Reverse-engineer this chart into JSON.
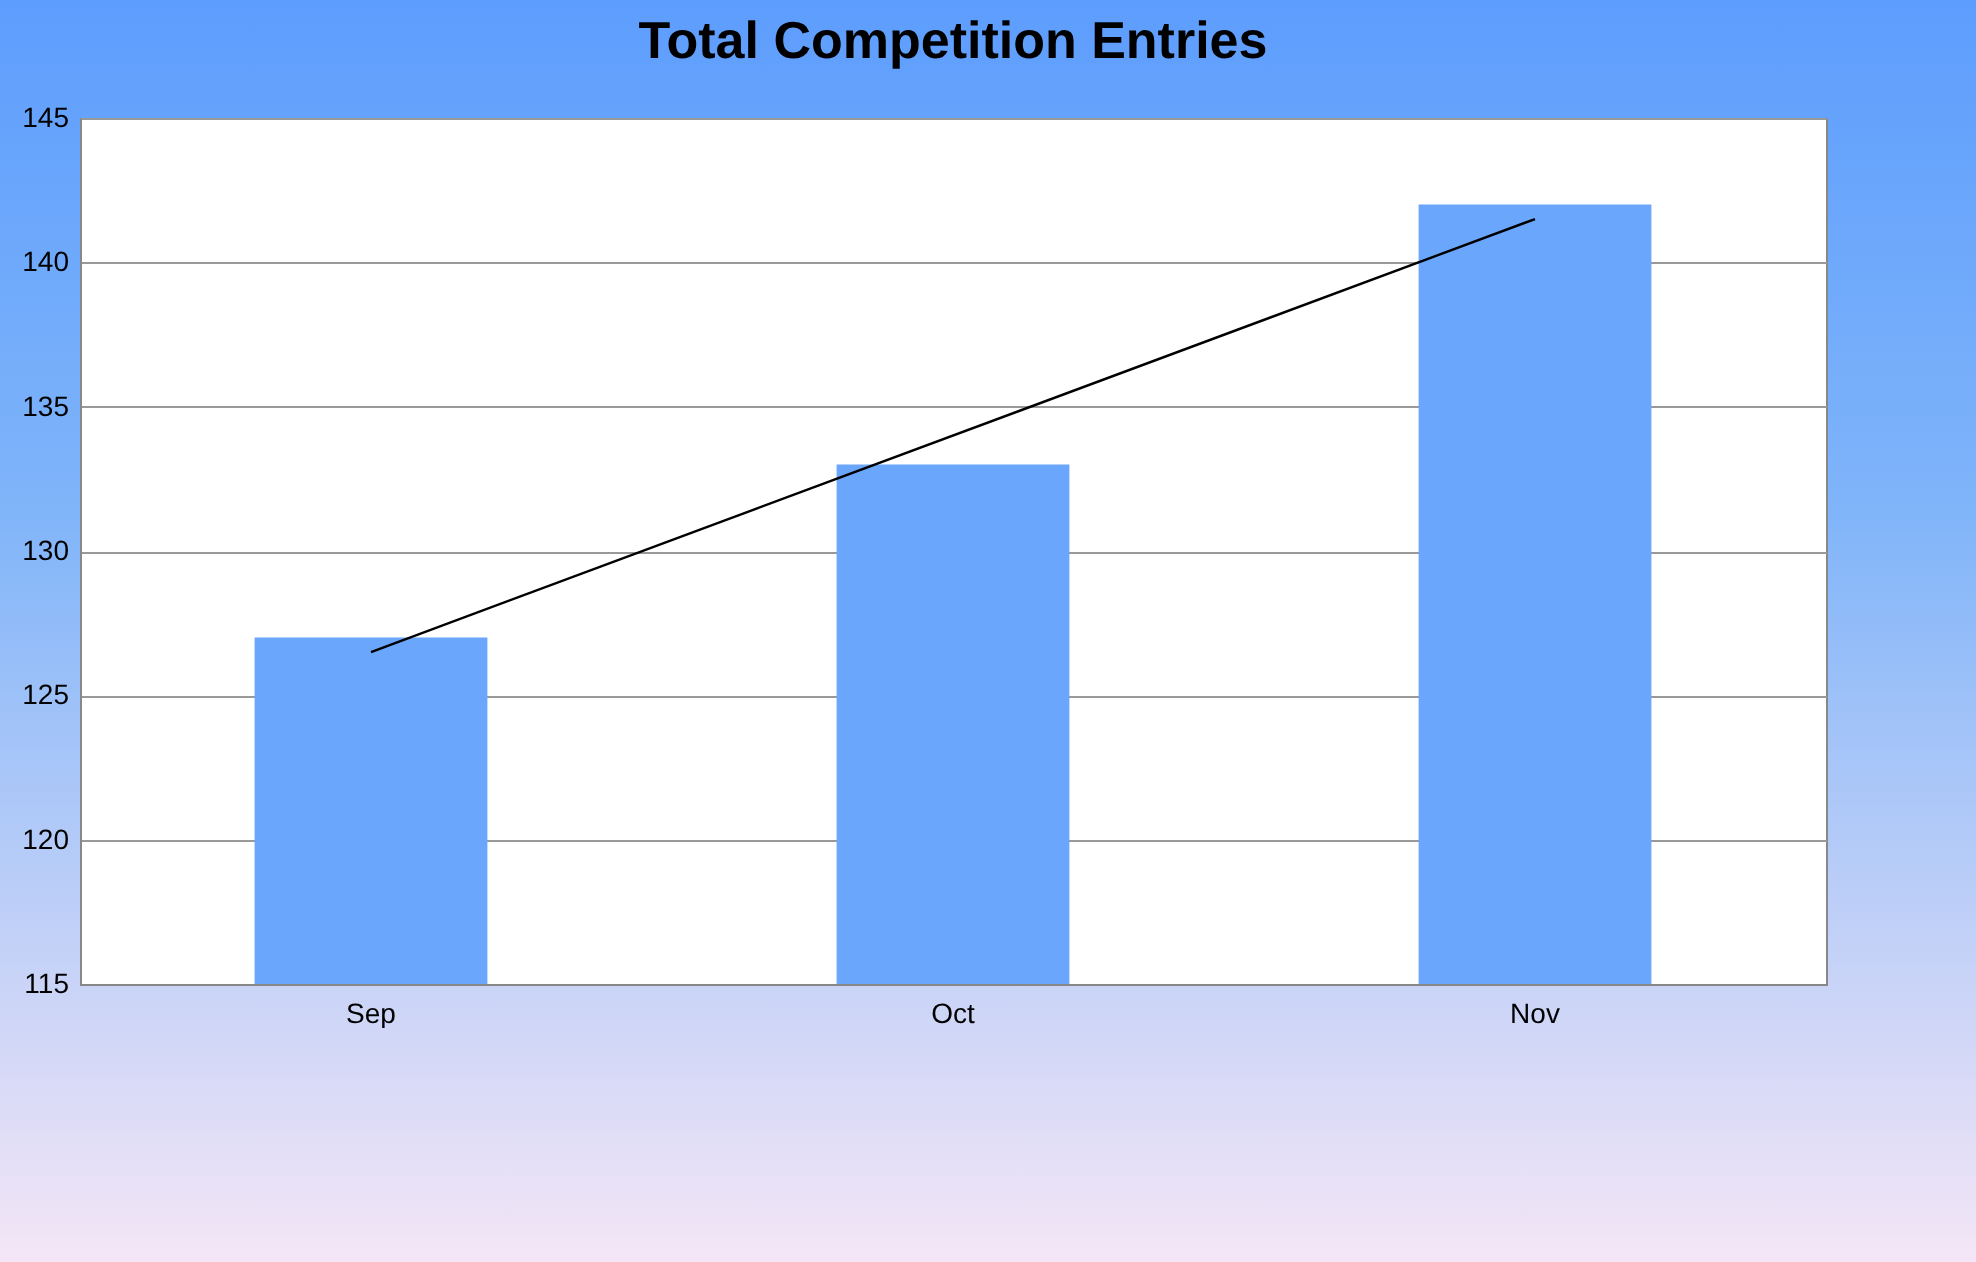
{
  "chart_data": {
    "type": "bar",
    "title": "Total Competition Entries",
    "categories": [
      "Sep",
      "Oct",
      "Nov"
    ],
    "series": [
      {
        "color": "#6aa6fc",
        "values": [
          127,
          133,
          142
        ]
      },
      {
        "type": "line",
        "color": "#000000",
        "x": [
          "Sep",
          "Nov"
        ],
        "values": [
          126.5,
          141.5
        ]
      }
    ],
    "ylim": [
      115,
      145
    ],
    "yticks": [
      115,
      120,
      125,
      130,
      135,
      140,
      145
    ],
    "grid": "y"
  }
}
